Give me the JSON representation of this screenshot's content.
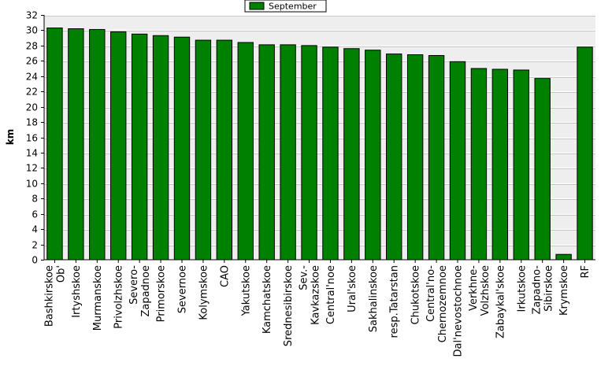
{
  "chart_data": {
    "type": "bar",
    "title": "",
    "xlabel": "",
    "ylabel": "km",
    "ylim": [
      0,
      32
    ],
    "ytick_step": 2,
    "grid": true,
    "legend_position": "top-center",
    "colors": {
      "bar": "#008000",
      "bar_edge": "#000000",
      "plot_background": "#eeeeee",
      "grid": "#ffffff"
    },
    "categories": [
      "Bashkirskoe Ob'",
      "Irtyshskoe",
      "Murmanskoe",
      "Privolzhskoe",
      "Severo-Zapadnoe",
      "Primorskoe",
      "Severnoe",
      "Kolymskoe",
      "CAO",
      "Yakutskoe",
      "Kamchatskoe",
      "Srednesibirskoe",
      "Sev.-Kavkazskoe",
      "Central'noe",
      "Ural'skoe",
      "Sakhalinskoe",
      "resp.Tatarstan",
      "Chukotskoe",
      "Central'no-Chernozemnoe",
      "Dal'nevostochnoe",
      "Verkhne-Volzhskoe",
      "Zabaykal'skoe",
      "Irkutskoe",
      "Zapadno-Sibirskoe",
      "Krymskoe",
      "RF"
    ],
    "category_label_lines": [
      [
        "Bashkirskoe",
        "Ob'"
      ],
      [
        "Irtyshskoe"
      ],
      [
        "Murmanskoe"
      ],
      [
        "Privolzhskoe"
      ],
      [
        "Severo-",
        "Zapadnoe"
      ],
      [
        "Primorskoe"
      ],
      [
        "Severnoe"
      ],
      [
        "Kolymskoe"
      ],
      [
        "CAO"
      ],
      [
        "Yakutskoe"
      ],
      [
        "Kamchatskoe"
      ],
      [
        "Srednesibirskoe"
      ],
      [
        "Sev.-",
        "Kavkazskoe"
      ],
      [
        "Central'noe"
      ],
      [
        "Ural'skoe"
      ],
      [
        "Sakhalinskoe"
      ],
      [
        "resp.Tatarstan"
      ],
      [
        "Chukotskoe"
      ],
      [
        "Central'no-",
        "Chernozemnoe"
      ],
      [
        "Dal'nevostochnoe"
      ],
      [
        "Verkhne-",
        "Volzhskoe"
      ],
      [
        "Zabaykal'skoe"
      ],
      [
        "Irkutskoe"
      ],
      [
        "Zapadno-",
        "Sibirskoe"
      ],
      [
        "Krymskoe"
      ],
      [
        "RF"
      ]
    ],
    "series": [
      {
        "name": "September",
        "values": [
          30.3,
          30.2,
          30.1,
          29.8,
          29.5,
          29.3,
          29.1,
          28.7,
          28.7,
          28.4,
          28.1,
          28.1,
          28.0,
          27.8,
          27.6,
          27.4,
          26.9,
          26.8,
          26.7,
          25.9,
          25.0,
          24.9,
          24.8,
          23.7,
          0.7,
          27.8
        ]
      }
    ]
  }
}
